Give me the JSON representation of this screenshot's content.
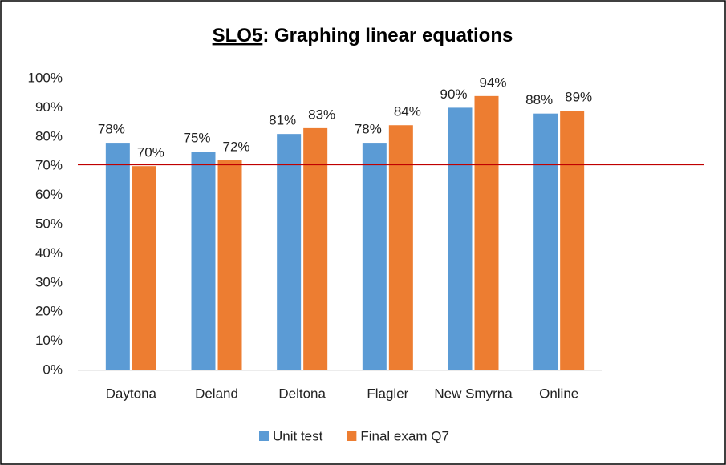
{
  "chart_data": {
    "type": "bar",
    "title": [
      "SLO5",
      ": Graphing linear equations"
    ],
    "categories": [
      "Daytona",
      "Deland",
      "Deltona",
      "Flagler",
      "New Smyrna",
      "Online"
    ],
    "series": [
      {
        "name": "Unit test",
        "color": "#5b9bd5",
        "values": [
          78,
          75,
          81,
          78,
          90,
          88
        ],
        "value_labels": [
          "78%",
          "75%",
          "81%",
          "78%",
          "90%",
          "88%"
        ]
      },
      {
        "name": "Final exam Q7",
        "color": "#ed7d31",
        "values": [
          70,
          72,
          83,
          84,
          94,
          89
        ],
        "value_labels": [
          "70%",
          "72%",
          "83%",
          "84%",
          "94%",
          "89%"
        ]
      }
    ],
    "ylim": [
      0,
      100
    ],
    "yticks": [
      {
        "value": 0,
        "label": "0%"
      },
      {
        "value": 10,
        "label": "10%"
      },
      {
        "value": 20,
        "label": "20%"
      },
      {
        "value": 30,
        "label": "30%"
      },
      {
        "value": 40,
        "label": "40%"
      },
      {
        "value": 50,
        "label": "50%"
      },
      {
        "value": 60,
        "label": "60%"
      },
      {
        "value": 70,
        "label": "70%"
      },
      {
        "value": 80,
        "label": "80%"
      },
      {
        "value": 90,
        "label": "90%"
      },
      {
        "value": 100,
        "label": "100%"
      }
    ],
    "reference_line": {
      "value": 70.5,
      "color": "#c00000"
    },
    "legend": "bottom"
  }
}
